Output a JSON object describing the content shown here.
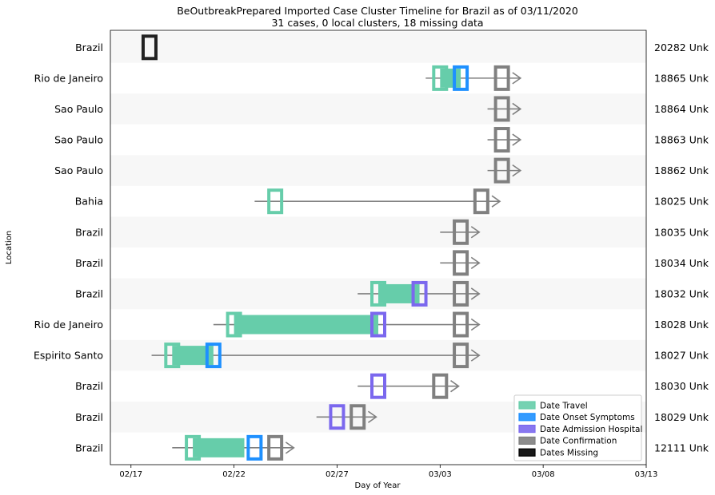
{
  "chart_data": {
    "type": "timeline",
    "title_line1": "BeOutbreakPrepared Imported Case Cluster Timeline for Brazil as of 03/11/2020",
    "title_line2": "31 cases, 0 local clusters, 18 missing data",
    "xlabel": "Day of Year",
    "ylabel": "Location",
    "x_ticks": [
      {
        "day": 0,
        "label": "02/17"
      },
      {
        "day": 5,
        "label": "02/22"
      },
      {
        "day": 10,
        "label": "02/27"
      },
      {
        "day": 15,
        "label": "03/03"
      },
      {
        "day": 20,
        "label": "03/08"
      },
      {
        "day": 25,
        "label": "03/13"
      }
    ],
    "xlim": [
      -1,
      25
    ],
    "colors": {
      "travel": "#66cdaa",
      "onset": "#1e90ff",
      "admission": "#7b68ee",
      "confirmation": "#808080",
      "missing": "#000000",
      "line": "#808080",
      "band": "#f7f7f7"
    },
    "legend": [
      {
        "key": "travel",
        "label": "Date Travel"
      },
      {
        "key": "onset",
        "label": "Date Onset Symptoms"
      },
      {
        "key": "admission",
        "label": "Date Admission Hospital"
      },
      {
        "key": "confirmation",
        "label": "Date Confirmation"
      },
      {
        "key": "missing",
        "label": "Dates Missing"
      }
    ],
    "rows": [
      {
        "location": "Brazil",
        "case_label": "20282 Unk",
        "missing": 0.9
      },
      {
        "location": "Rio de Janeiro",
        "case_label": "18865 Unk",
        "line": [
          14.3,
          18.9
        ],
        "travel": [
          15,
          16
        ],
        "onset": 16,
        "confirmation": 18
      },
      {
        "location": "Sao Paulo",
        "case_label": "18864 Unk",
        "line": [
          17.3,
          18.9
        ],
        "confirmation": 18
      },
      {
        "location": "Sao Paulo",
        "case_label": "18863 Unk",
        "line": [
          17.3,
          18.9
        ],
        "confirmation": 18
      },
      {
        "location": "Sao Paulo",
        "case_label": "18862 Unk",
        "line": [
          17.3,
          18.9
        ],
        "confirmation": 18
      },
      {
        "location": "Bahia",
        "case_label": "18025 Unk",
        "line": [
          6,
          17.9
        ],
        "travel_marker": 7,
        "confirmation": 17
      },
      {
        "location": "Brazil",
        "case_label": "18035 Unk",
        "line": [
          15,
          16.9
        ],
        "confirmation": 16
      },
      {
        "location": "Brazil",
        "case_label": "18034 Unk",
        "line": [
          15,
          16.9
        ],
        "confirmation": 16
      },
      {
        "location": "Brazil",
        "case_label": "18032 Unk",
        "line": [
          11,
          16.9
        ],
        "travel": [
          12,
          14
        ],
        "admission": 14,
        "confirmation": 16
      },
      {
        "location": "Rio de Janeiro",
        "case_label": "18028 Unk",
        "line": [
          4,
          16.9
        ],
        "travel": [
          5,
          12
        ],
        "admission": 12,
        "confirmation": 16
      },
      {
        "location": "Espirito Santo",
        "case_label": "18027 Unk",
        "line": [
          1,
          16.9
        ],
        "travel": [
          2,
          4
        ],
        "onset": 4,
        "confirmation": 16
      },
      {
        "location": "Brazil",
        "case_label": "18030 Unk",
        "line": [
          11,
          15.9
        ],
        "admission": 12,
        "confirmation": 15
      },
      {
        "location": "Brazil",
        "case_label": "18029 Unk",
        "line": [
          9,
          11.9
        ],
        "admission": 10,
        "confirmation": 11
      },
      {
        "location": "Brazil",
        "case_label": "12111 Unk",
        "line": [
          2,
          7.9
        ],
        "travel": [
          3,
          5.5
        ],
        "onset": 6,
        "confirmation": 7
      }
    ]
  }
}
